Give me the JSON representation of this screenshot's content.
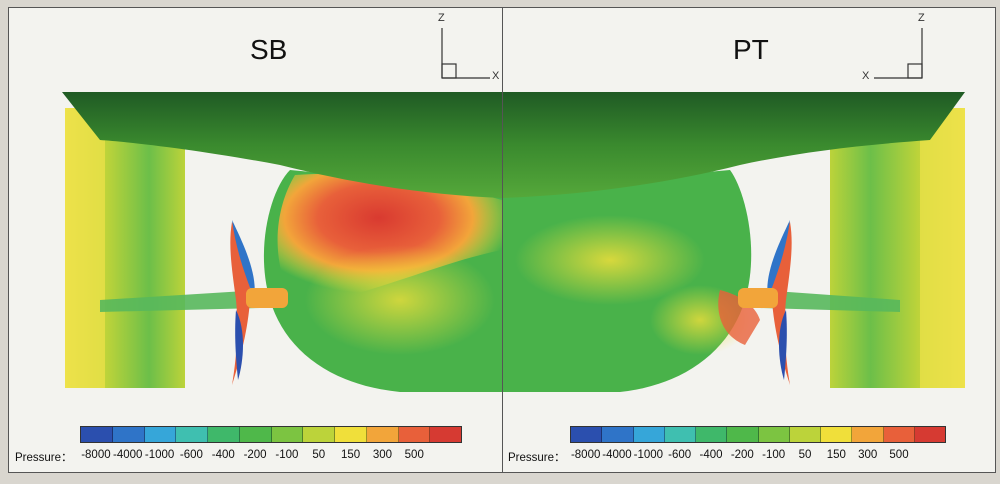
{
  "panels": [
    {
      "title": "SB",
      "axis_up": "Z",
      "axis_side": "X"
    },
    {
      "title": "PT",
      "axis_up": "Z",
      "axis_side": "X"
    }
  ],
  "legend": {
    "label": "Pressure：",
    "ticks": [
      "-8000",
      "-4000",
      "-1000",
      "-600",
      "-400",
      "-200",
      "-100",
      "50",
      "150",
      "300",
      "500"
    ],
    "colors": [
      "#2b4fae",
      "#2f74c8",
      "#36a6d9",
      "#3fbfb0",
      "#3fb86a",
      "#4fb84a",
      "#7cc441",
      "#bcd33a",
      "#f0df3a",
      "#f2a53a",
      "#e8603a",
      "#d63a32"
    ]
  }
}
